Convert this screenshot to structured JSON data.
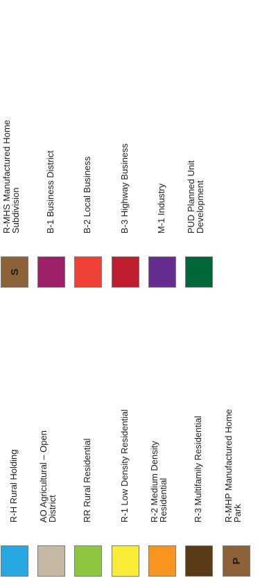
{
  "legend": {
    "left": [
      {
        "label": "R-H  Rural Holding",
        "color": "#27A8E1",
        "symbol": ""
      },
      {
        "label": "AO Agricultural – Open\nDistrict",
        "color": "#C4B8A2",
        "symbol": ""
      },
      {
        "label": "RR Rural Residential",
        "color": "#8DC63F",
        "symbol": ""
      },
      {
        "label": "R-1 Low Density Residential",
        "color": "#F8EC35",
        "symbol": ""
      },
      {
        "label": "R-2 Medium Density\nResidential",
        "color": "#F7951E",
        "symbol": ""
      },
      {
        "label": "R-3 Multifamily Residential",
        "color": "#5B3A16",
        "symbol": ""
      },
      {
        "label": "R-MHP Manufactured Home\nPark",
        "color": "#8C6239",
        "symbol": "P"
      }
    ],
    "right": [
      {
        "label": "R-MHS Manufactured Home\nSubdivision",
        "color": "#8C6239",
        "symbol": "S"
      },
      {
        "label": "B-1 Business District",
        "color": "#9E2068",
        "symbol": ""
      },
      {
        "label": "B-2 Local Business",
        "color": "#EF4136",
        "symbol": ""
      },
      {
        "label": "B-3 Highway Business",
        "color": "#BE1E2D",
        "symbol": ""
      },
      {
        "label": "M-1 Industry",
        "color": "#662D91",
        "symbol": ""
      },
      {
        "label": "PUD Planned Unit\nDevelopment",
        "color": "#006838",
        "symbol": ""
      }
    ]
  }
}
